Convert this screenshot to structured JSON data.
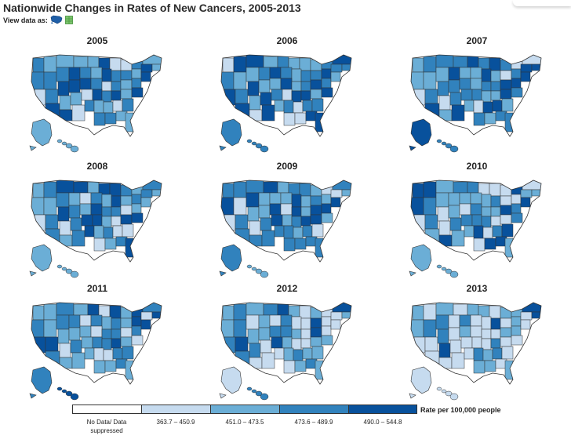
{
  "page": {
    "title": "Nationwide Changes in Rates of New Cancers, 2005-2013",
    "view_data_as": "View data as:",
    "view_icons": [
      "map-icon",
      "table-icon"
    ]
  },
  "colors": {
    "no_data": "#ffffff",
    "bin1": "#c6dbef",
    "bin2": "#6baed6",
    "bin3": "#3182bd",
    "bin4": "#08519c",
    "border": "#333333"
  },
  "maps": [
    {
      "year": "2005",
      "counts": [
        7,
        14,
        16,
        13
      ]
    },
    {
      "year": "2006",
      "counts": [
        5,
        14,
        16,
        15
      ]
    },
    {
      "year": "2007",
      "counts": [
        6,
        13,
        17,
        14
      ]
    },
    {
      "year": "2008",
      "counts": [
        8,
        15,
        15,
        12
      ]
    },
    {
      "year": "2009",
      "counts": [
        7,
        14,
        17,
        12
      ]
    },
    {
      "year": "2010",
      "counts": [
        14,
        14,
        13,
        9
      ]
    },
    {
      "year": "2011",
      "counts": [
        9,
        15,
        16,
        9
      ]
    },
    {
      "year": "2012",
      "counts": [
        18,
        16,
        10,
        6
      ]
    },
    {
      "year": "2013",
      "counts": [
        26,
        13,
        7,
        4
      ]
    }
  ],
  "legend": {
    "title": "Rate per 100,000 people",
    "bins": [
      {
        "label": "No Data/ Data suppressed",
        "color": "#ffffff"
      },
      {
        "label": "363.7 – 450.9",
        "color": "#c6dbef"
      },
      {
        "label": "451.0 – 473.5",
        "color": "#6baed6"
      },
      {
        "label": "473.6 – 489.9",
        "color": "#3182bd"
      },
      {
        "label": "490.0 – 544.8",
        "color": "#08519c"
      }
    ]
  }
}
